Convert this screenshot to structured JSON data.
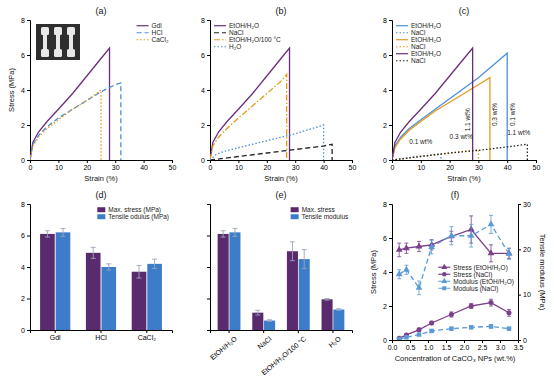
{
  "chart_data": [
    {
      "type": "line",
      "title": "(a)",
      "xlabel": "Strain (%)",
      "ylabel": "Stress (MPa)",
      "xlim": [
        0,
        50
      ],
      "xticks": [
        0,
        10,
        20,
        30,
        40,
        50
      ],
      "ylim": [
        0,
        8
      ],
      "yticks": [
        0,
        2,
        4,
        6,
        8
      ],
      "legend": "upper right",
      "series": [
        {
          "name": "Gdl",
          "color": "#6b2d7b",
          "line_style": "solid",
          "x": [
            0,
            1,
            3,
            6,
            10,
            15,
            20,
            25,
            28,
            28
          ],
          "values": [
            0,
            1.0,
            1.6,
            2.2,
            2.9,
            3.8,
            4.8,
            5.8,
            6.4,
            0
          ]
        },
        {
          "name": "HCl",
          "color": "#4a90d9",
          "line_style": "dashed",
          "x": [
            0,
            1,
            3,
            6,
            10,
            15,
            20,
            25,
            30,
            32,
            32
          ],
          "values": [
            0,
            0.9,
            1.4,
            1.9,
            2.4,
            2.9,
            3.4,
            3.9,
            4.3,
            4.4,
            0
          ]
        },
        {
          "name": "CaCl₂",
          "color": "#e39b1b",
          "line_style": "dotted",
          "x": [
            0,
            1,
            3,
            6,
            10,
            15,
            20,
            25,
            25
          ],
          "values": [
            0,
            0.8,
            1.3,
            1.8,
            2.3,
            2.9,
            3.4,
            4.0,
            0
          ]
        }
      ]
    },
    {
      "type": "line",
      "title": "(b)",
      "xlabel": "Strain (%)",
      "xlim": [
        0,
        50
      ],
      "xticks": [
        0,
        10,
        20,
        30,
        40,
        50
      ],
      "ylim": [
        0,
        8
      ],
      "yticks": [
        0,
        2,
        4,
        6,
        8
      ],
      "legend": "upper left",
      "series": [
        {
          "name": "EtOH/H₂O",
          "color": "#6b2d7b",
          "line_style": "solid",
          "x": [
            0,
            1,
            3,
            6,
            10,
            15,
            20,
            25,
            28,
            28
          ],
          "values": [
            0,
            1.0,
            1.6,
            2.2,
            2.9,
            3.8,
            4.8,
            5.8,
            6.4,
            0
          ]
        },
        {
          "name": "NaCl",
          "color": "#222222",
          "line_style": "dashed",
          "x": [
            0,
            5,
            10,
            20,
            30,
            40,
            43,
            43
          ],
          "values": [
            0,
            0.1,
            0.2,
            0.4,
            0.6,
            0.8,
            0.9,
            0
          ]
        },
        {
          "name": "EtOH/H₂O/100 °C",
          "color": "#e39b1b",
          "line_style": "dashdot",
          "x": [
            0,
            1,
            3,
            6,
            10,
            15,
            20,
            25,
            27,
            27
          ],
          "values": [
            0,
            0.8,
            1.3,
            1.8,
            2.4,
            3.1,
            3.8,
            4.5,
            4.9,
            0
          ]
        },
        {
          "name": "H₂O",
          "color": "#4a90d9",
          "line_style": "dotted",
          "x": [
            0,
            2,
            5,
            10,
            20,
            30,
            40,
            40
          ],
          "values": [
            0,
            0.3,
            0.5,
            0.7,
            1.1,
            1.5,
            2.0,
            0
          ]
        }
      ]
    },
    {
      "type": "line",
      "title": "(c)",
      "xlabel": "Strain (%)",
      "xlim": [
        0,
        50
      ],
      "xticks": [
        0,
        10,
        20,
        30,
        40,
        50
      ],
      "ylim": [
        0,
        8
      ],
      "yticks": [
        0,
        2,
        4,
        6,
        8
      ],
      "legend": "upper left",
      "series": [
        {
          "name": "EtOH/H₂O",
          "color": "#4a90d9",
          "line_style": "solid",
          "x": [
            0,
            1,
            3,
            6,
            10,
            15,
            20,
            25,
            30,
            35,
            40,
            40
          ],
          "values": [
            0,
            0.8,
            1.3,
            1.8,
            2.3,
            2.9,
            3.5,
            4.1,
            4.7,
            5.4,
            6.1,
            0
          ]
        },
        {
          "name": "NaCl",
          "color": "#4a90d9",
          "line_style": "dotted",
          "x": [
            0,
            5,
            10,
            17,
            17
          ],
          "values": [
            0,
            0.12,
            0.22,
            0.35,
            0
          ]
        },
        {
          "name": "EtOH/H₂O",
          "color": "#e39b1b",
          "line_style": "solid",
          "x": [
            0,
            1,
            3,
            6,
            10,
            15,
            20,
            25,
            30,
            34,
            34
          ],
          "values": [
            0,
            0.7,
            1.2,
            1.7,
            2.2,
            2.8,
            3.3,
            3.8,
            4.3,
            4.7,
            0
          ]
        },
        {
          "name": "NaCl",
          "color": "#e39b1b",
          "line_style": "dotted",
          "x": [
            0,
            10,
            20,
            30,
            30
          ],
          "values": [
            0,
            0.2,
            0.4,
            0.6,
            0
          ]
        },
        {
          "name": "EtOH/H₂O",
          "color": "#6b2d7b",
          "line_style": "solid",
          "x": [
            0,
            1,
            3,
            6,
            10,
            15,
            20,
            25,
            28,
            28
          ],
          "values": [
            0,
            1.0,
            1.6,
            2.2,
            2.9,
            3.8,
            4.8,
            5.8,
            6.4,
            0
          ]
        },
        {
          "name": "NaCl",
          "color": "#222222",
          "line_style": "dotted",
          "x": [
            0,
            10,
            20,
            30,
            40,
            47,
            47
          ],
          "values": [
            0,
            0.2,
            0.4,
            0.55,
            0.75,
            0.9,
            0
          ]
        }
      ],
      "annotations": [
        {
          "text": "1.1 wt%",
          "x": 26.5,
          "y": 2.3,
          "orientation": "vertical"
        },
        {
          "text": "0.3 wt%",
          "x": 36,
          "y": 2.6,
          "orientation": "vertical"
        },
        {
          "text": "0.1 wt%",
          "x": 42,
          "y": 2.6,
          "orientation": "vertical"
        },
        {
          "text": "0.1 wt%",
          "x": 10,
          "y": 1.0
        },
        {
          "text": "0.3 wt%",
          "x": 24,
          "y": 1.3
        },
        {
          "text": "1.1 wt%",
          "x": 44,
          "y": 1.5
        }
      ]
    },
    {
      "type": "bar",
      "title": "(d)",
      "categories": [
        "Gdl",
        "HCl",
        "CaCl₂"
      ],
      "ylim": [
        0,
        8
      ],
      "yticks": [
        0,
        2,
        4,
        6,
        8
      ],
      "legend": "upper right",
      "series": [
        {
          "name": "Max. stress (MPa)",
          "color": "#5a2a6e",
          "values": [
            6.1,
            4.9,
            3.7
          ],
          "errors": [
            0.2,
            0.35,
            0.4
          ]
        },
        {
          "name": "Tensile odulus (MPa)",
          "color": "#3c7cc9",
          "values": [
            6.2,
            4.0,
            4.2
          ],
          "errors": [
            0.25,
            0.2,
            0.3
          ]
        }
      ]
    },
    {
      "type": "bar",
      "title": "(e)",
      "categories": [
        "EtOH/H₂O",
        "NaCl",
        "EtOH/H₂O/100 °C",
        "H₂O"
      ],
      "ylim": [
        0,
        8
      ],
      "yticks": [
        0,
        2,
        4,
        6,
        8
      ],
      "tick_labels": "x",
      "legend": "upper right",
      "series": [
        {
          "name": "Max. stress",
          "color": "#5a2a6e",
          "values": [
            6.1,
            1.1,
            5.0,
            1.95
          ],
          "errors": [
            0.2,
            0.15,
            0.6,
            0.05
          ]
        },
        {
          "name": "Tensile modulus",
          "color": "#3c7cc9",
          "values": [
            6.2,
            0.6,
            4.5,
            1.3
          ],
          "errors": [
            0.25,
            0.05,
            0.6,
            0.05
          ]
        }
      ]
    },
    {
      "type": "line",
      "title": "(f)",
      "xlabel": "Concentration of CaCO₃ NPs (wt.%)",
      "ylabel": "Stress (MPa)",
      "y2label": "Tensile modulus (MPa)",
      "xlim": [
        0,
        3.5
      ],
      "xticks": [
        {
          "value": 0,
          "label": "0.0"
        },
        0.5,
        {
          "value": 1,
          "label": "1.0"
        },
        1.5,
        {
          "value": 2,
          "label": "2.0"
        },
        2.5,
        {
          "value": 3,
          "label": "3.0"
        },
        3.5
      ],
      "ylim": [
        0,
        8
      ],
      "yticks": [
        0,
        2,
        4,
        6,
        8
      ],
      "y2lim": [
        0,
        30
      ],
      "y2ticks": [
        0,
        10,
        20,
        30
      ],
      "legend": "center right",
      "series": [
        {
          "name": "Stress (EtOH/H₂O)",
          "color": "#7b3f8c",
          "marker": "triangle",
          "line_style": "solid",
          "x": [
            0.2,
            0.4,
            0.75,
            1.1,
            1.65,
            2.2,
            2.75,
            3.25
          ],
          "values": [
            5.3,
            5.4,
            5.5,
            5.6,
            6.1,
            6.5,
            5.1,
            5.1
          ],
          "errors": [
            0.4,
            0.3,
            0.3,
            0.3,
            0.3,
            0.8,
            0.5,
            0.3
          ]
        },
        {
          "name": "Stress (NaCl)",
          "color": "#7b3f8c",
          "marker": "circle",
          "line_style": "solid",
          "x": [
            0.2,
            0.4,
            0.75,
            1.1,
            1.65,
            2.2,
            2.75,
            3.25
          ],
          "values": [
            0.1,
            0.3,
            0.6,
            1.0,
            1.5,
            2.0,
            2.2,
            1.6
          ],
          "errors": [
            0.05,
            0.05,
            0.1,
            0.1,
            0.15,
            0.15,
            0.2,
            0.2
          ]
        },
        {
          "name": "Modulus (EtOH/H₂O)",
          "color": "#5b9bd5",
          "marker": "triangle",
          "line_style": "dashed",
          "axis": "y2",
          "x": [
            0.2,
            0.4,
            0.75,
            1.1,
            1.65,
            2.2,
            2.75,
            3.25
          ],
          "values": [
            14.5,
            15.5,
            11.5,
            20.5,
            23,
            23,
            25.5,
            19
          ],
          "errors": [
            1,
            1,
            1.5,
            1.5,
            2,
            2.5,
            2,
            1.2
          ]
        },
        {
          "name": "Modulus (NaCl)",
          "color": "#5b9bd5",
          "marker": "square",
          "line_style": "dashed",
          "axis": "y2",
          "x": [
            0.2,
            0.4,
            0.75,
            1.1,
            1.65,
            2.2,
            2.75,
            3.25
          ],
          "values": [
            0.2,
            0.6,
            1.2,
            2.0,
            2.5,
            2.8,
            3.0,
            2.5
          ],
          "errors": [
            0.1,
            0.1,
            0.2,
            0.3,
            0.3,
            0.3,
            0.4,
            0.3
          ]
        }
      ]
    }
  ]
}
